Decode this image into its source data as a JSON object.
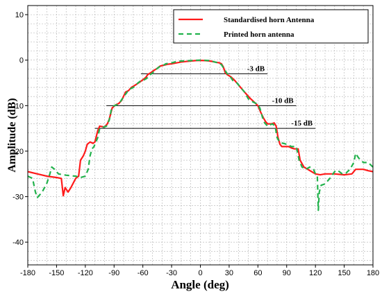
{
  "chart_data": {
    "type": "line",
    "title": "",
    "xlabel": "Angle (deg)",
    "ylabel": "Amplitude (dB)",
    "xlim": [
      -180,
      180
    ],
    "ylim": [
      -45,
      12
    ],
    "xticks": [
      -180,
      -150,
      -120,
      -90,
      -60,
      -30,
      0,
      30,
      60,
      90,
      120,
      150,
      180
    ],
    "yticks": [
      10,
      0,
      -10,
      -20,
      -30,
      -40
    ],
    "grid": true,
    "legend_position": "top-right",
    "series": [
      {
        "name": "Standardised horn Antenna",
        "color": "#ff1a1a",
        "style": "solid",
        "points": [
          [
            -180,
            -24.5
          ],
          [
            -170,
            -25
          ],
          [
            -160,
            -25.5
          ],
          [
            -150,
            -25.8
          ],
          [
            -145,
            -26
          ],
          [
            -143,
            -29.8
          ],
          [
            -141,
            -28
          ],
          [
            -138,
            -29
          ],
          [
            -135,
            -28
          ],
          [
            -130,
            -26
          ],
          [
            -127,
            -25.5
          ],
          [
            -125,
            -22
          ],
          [
            -122,
            -21
          ],
          [
            -120,
            -20
          ],
          [
            -118,
            -18.5
          ],
          [
            -115,
            -18
          ],
          [
            -112,
            -18.3
          ],
          [
            -110,
            -18
          ],
          [
            -107,
            -15.5
          ],
          [
            -105,
            -14.5
          ],
          [
            -100,
            -14.7
          ],
          [
            -97,
            -14
          ],
          [
            -95,
            -13
          ],
          [
            -92,
            -10.5
          ],
          [
            -88,
            -9.8
          ],
          [
            -85,
            -9.5
          ],
          [
            -82,
            -8.8
          ],
          [
            -78,
            -7
          ],
          [
            -75,
            -6.7
          ],
          [
            -72,
            -6
          ],
          [
            -68,
            -5.5
          ],
          [
            -63,
            -4.8
          ],
          [
            -60,
            -4.3
          ],
          [
            -57,
            -3.8
          ],
          [
            -55,
            -3.2
          ],
          [
            -52,
            -2.8
          ],
          [
            -48,
            -2.2
          ],
          [
            -45,
            -1.8
          ],
          [
            -42,
            -1.3
          ],
          [
            -38,
            -1.1
          ],
          [
            -34,
            -0.9
          ],
          [
            -30,
            -0.8
          ],
          [
            -25,
            -0.6
          ],
          [
            -20,
            -0.4
          ],
          [
            -15,
            -0.3
          ],
          [
            -10,
            -0.2
          ],
          [
            -5,
            -0.1
          ],
          [
            0,
            -0.05
          ],
          [
            5,
            -0.1
          ],
          [
            10,
            -0.2
          ],
          [
            15,
            -0.4
          ],
          [
            20,
            -0.6
          ],
          [
            22,
            -0.8
          ],
          [
            24,
            -1.5
          ],
          [
            26,
            -2.8
          ],
          [
            28,
            -3.2
          ],
          [
            32,
            -3.7
          ],
          [
            36,
            -4.5
          ],
          [
            40,
            -5.5
          ],
          [
            44,
            -6.5
          ],
          [
            48,
            -7.5
          ],
          [
            52,
            -8.4
          ],
          [
            56,
            -9.2
          ],
          [
            60,
            -10
          ],
          [
            63,
            -11.5
          ],
          [
            66,
            -12.8
          ],
          [
            68,
            -13.5
          ],
          [
            70,
            -14
          ],
          [
            74,
            -14
          ],
          [
            77,
            -13.8
          ],
          [
            79,
            -14.5
          ],
          [
            81,
            -17
          ],
          [
            83,
            -18.5
          ],
          [
            85,
            -19
          ],
          [
            88,
            -19
          ],
          [
            92,
            -19
          ],
          [
            95,
            -19.3
          ],
          [
            98,
            -19.5
          ],
          [
            102,
            -19.5
          ],
          [
            104,
            -22
          ],
          [
            108,
            -23.5
          ],
          [
            112,
            -24
          ],
          [
            116,
            -24.5
          ],
          [
            120,
            -25
          ],
          [
            125,
            -25.2
          ],
          [
            130,
            -25
          ],
          [
            140,
            -25
          ],
          [
            150,
            -25.2
          ],
          [
            158,
            -25
          ],
          [
            162,
            -24
          ],
          [
            170,
            -24
          ],
          [
            175,
            -24.3
          ],
          [
            180,
            -24.5
          ]
        ]
      },
      {
        "name": "Printed horn antenna",
        "color": "#22b24c",
        "style": "dashed",
        "points": [
          [
            -180,
            -25.5
          ],
          [
            -175,
            -26
          ],
          [
            -172,
            -29
          ],
          [
            -170,
            -30.2
          ],
          [
            -165,
            -29
          ],
          [
            -160,
            -27
          ],
          [
            -157,
            -25
          ],
          [
            -155,
            -23.5
          ],
          [
            -152,
            -24
          ],
          [
            -148,
            -25
          ],
          [
            -140,
            -25.3
          ],
          [
            -130,
            -25.5
          ],
          [
            -125,
            -25.8
          ],
          [
            -120,
            -25.5
          ],
          [
            -117,
            -24
          ],
          [
            -115,
            -21
          ],
          [
            -113,
            -19.5
          ],
          [
            -111,
            -19
          ],
          [
            -107,
            -17
          ],
          [
            -105,
            -15
          ],
          [
            -102,
            -14.8
          ],
          [
            -98,
            -14.5
          ],
          [
            -95,
            -13.2
          ],
          [
            -93,
            -11
          ],
          [
            -90,
            -10
          ],
          [
            -87,
            -9.8
          ],
          [
            -84,
            -9.3
          ],
          [
            -80,
            -8
          ],
          [
            -77,
            -7.2
          ],
          [
            -75,
            -6.5
          ],
          [
            -70,
            -6
          ],
          [
            -65,
            -5
          ],
          [
            -62,
            -4.5
          ],
          [
            -60,
            -4.5
          ],
          [
            -56,
            -4
          ],
          [
            -54,
            -3.5
          ],
          [
            -50,
            -2.8
          ],
          [
            -46,
            -2
          ],
          [
            -43,
            -1.5
          ],
          [
            -40,
            -1.3
          ],
          [
            -36,
            -0.8
          ],
          [
            -30,
            -0.6
          ],
          [
            -25,
            -0.3
          ],
          [
            -20,
            -0.2
          ],
          [
            -10,
            -0.1
          ],
          [
            0,
            0
          ],
          [
            10,
            -0.1
          ],
          [
            15,
            -0.4
          ],
          [
            20,
            -0.7
          ],
          [
            22,
            -1
          ],
          [
            25,
            -2
          ],
          [
            28,
            -3
          ],
          [
            30,
            -3.3
          ],
          [
            34,
            -4.5
          ],
          [
            38,
            -5
          ],
          [
            42,
            -6
          ],
          [
            46,
            -7
          ],
          [
            50,
            -8.5
          ],
          [
            55,
            -9.2
          ],
          [
            58,
            -9.5
          ],
          [
            62,
            -10.5
          ],
          [
            66,
            -13.5
          ],
          [
            70,
            -14.5
          ],
          [
            75,
            -14
          ],
          [
            78,
            -14.5
          ],
          [
            80,
            -17
          ],
          [
            82,
            -17.8
          ],
          [
            85,
            -18.2
          ],
          [
            90,
            -18.5
          ],
          [
            95,
            -19
          ],
          [
            100,
            -19
          ],
          [
            103,
            -22
          ],
          [
            106,
            -23.5
          ],
          [
            110,
            -24
          ],
          [
            114,
            -23.5
          ],
          [
            118,
            -24
          ],
          [
            120,
            -25
          ],
          [
            122,
            -25.5
          ],
          [
            123,
            -33
          ],
          [
            124,
            -29
          ],
          [
            126,
            -27.5
          ],
          [
            130,
            -27.2
          ],
          [
            135,
            -26
          ],
          [
            140,
            -24.5
          ],
          [
            143,
            -24.2
          ],
          [
            148,
            -25
          ],
          [
            152,
            -24.8
          ],
          [
            156,
            -24
          ],
          [
            160,
            -22.5
          ],
          [
            162,
            -20.5
          ],
          [
            165,
            -21.5
          ],
          [
            170,
            -22.5
          ],
          [
            175,
            -22.5
          ],
          [
            180,
            -23.5
          ]
        ]
      }
    ],
    "reference_lines": [
      {
        "label": "-3 dB",
        "y": -3,
        "x_start": -62,
        "x_end": 70
      },
      {
        "label": "-10 dB",
        "y": -10,
        "x_start": -98,
        "x_end": 100
      },
      {
        "label": "-15 dB",
        "y": -15,
        "x_start": -110,
        "x_end": 120
      }
    ]
  }
}
